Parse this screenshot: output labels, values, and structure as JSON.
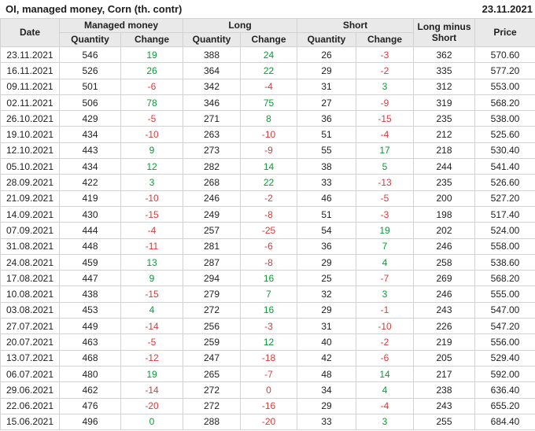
{
  "chart_data": {
    "type": "table",
    "title": "OI, managed money, Corn (th. contr)",
    "report_date": "23.11.2021",
    "headers": {
      "date": "Date",
      "managed_money": "Managed money",
      "long": "Long",
      "short": "Short",
      "quantity": "Quantity",
      "change": "Change",
      "long_minus_short": "Long minus Short",
      "price": "Price"
    },
    "colors": {
      "positive": "#0a9b36",
      "negative": "#d93a3a",
      "header_bg": "#e9e9e9",
      "border": "#d2d2d2",
      "text": "#222222"
    },
    "rows": [
      {
        "date": "23.11.2021",
        "mm_q": "546",
        "mm_ch": {
          "v": "19",
          "s": "pos"
        },
        "l_q": "388",
        "l_ch": {
          "v": "24",
          "s": "pos"
        },
        "s_q": "26",
        "s_ch": {
          "v": "-3",
          "s": "neg"
        },
        "lms": "362",
        "price": "570.60"
      },
      {
        "date": "16.11.2021",
        "mm_q": "526",
        "mm_ch": {
          "v": "26",
          "s": "pos"
        },
        "l_q": "364",
        "l_ch": {
          "v": "22",
          "s": "pos"
        },
        "s_q": "29",
        "s_ch": {
          "v": "-2",
          "s": "neg"
        },
        "lms": "335",
        "price": "577.20"
      },
      {
        "date": "09.11.2021",
        "mm_q": "501",
        "mm_ch": {
          "v": "-6",
          "s": "neg"
        },
        "l_q": "342",
        "l_ch": {
          "v": "-4",
          "s": "neg"
        },
        "s_q": "31",
        "s_ch": {
          "v": "3",
          "s": "pos"
        },
        "lms": "312",
        "price": "553.00"
      },
      {
        "date": "02.11.2021",
        "mm_q": "506",
        "mm_ch": {
          "v": "78",
          "s": "pos"
        },
        "l_q": "346",
        "l_ch": {
          "v": "75",
          "s": "pos"
        },
        "s_q": "27",
        "s_ch": {
          "v": "-9",
          "s": "neg"
        },
        "lms": "319",
        "price": "568.20"
      },
      {
        "date": "26.10.2021",
        "mm_q": "429",
        "mm_ch": {
          "v": "-5",
          "s": "neg"
        },
        "l_q": "271",
        "l_ch": {
          "v": "8",
          "s": "pos"
        },
        "s_q": "36",
        "s_ch": {
          "v": "-15",
          "s": "neg"
        },
        "lms": "235",
        "price": "538.00"
      },
      {
        "date": "19.10.2021",
        "mm_q": "434",
        "mm_ch": {
          "v": "-10",
          "s": "neg"
        },
        "l_q": "263",
        "l_ch": {
          "v": "-10",
          "s": "neg"
        },
        "s_q": "51",
        "s_ch": {
          "v": "-4",
          "s": "neg"
        },
        "lms": "212",
        "price": "525.60"
      },
      {
        "date": "12.10.2021",
        "mm_q": "443",
        "mm_ch": {
          "v": "9",
          "s": "pos"
        },
        "l_q": "273",
        "l_ch": {
          "v": "-9",
          "s": "neg"
        },
        "s_q": "55",
        "s_ch": {
          "v": "17",
          "s": "pos"
        },
        "lms": "218",
        "price": "530.40"
      },
      {
        "date": "05.10.2021",
        "mm_q": "434",
        "mm_ch": {
          "v": "12",
          "s": "pos"
        },
        "l_q": "282",
        "l_ch": {
          "v": "14",
          "s": "pos"
        },
        "s_q": "38",
        "s_ch": {
          "v": "5",
          "s": "pos"
        },
        "lms": "244",
        "price": "541.40"
      },
      {
        "date": "28.09.2021",
        "mm_q": "422",
        "mm_ch": {
          "v": "3",
          "s": "pos"
        },
        "l_q": "268",
        "l_ch": {
          "v": "22",
          "s": "pos"
        },
        "s_q": "33",
        "s_ch": {
          "v": "-13",
          "s": "neg"
        },
        "lms": "235",
        "price": "526.60"
      },
      {
        "date": "21.09.2021",
        "mm_q": "419",
        "mm_ch": {
          "v": "-10",
          "s": "neg"
        },
        "l_q": "246",
        "l_ch": {
          "v": "-2",
          "s": "neg"
        },
        "s_q": "46",
        "s_ch": {
          "v": "-5",
          "s": "neg"
        },
        "lms": "200",
        "price": "527.20"
      },
      {
        "date": "14.09.2021",
        "mm_q": "430",
        "mm_ch": {
          "v": "-15",
          "s": "neg"
        },
        "l_q": "249",
        "l_ch": {
          "v": "-8",
          "s": "neg"
        },
        "s_q": "51",
        "s_ch": {
          "v": "-3",
          "s": "neg"
        },
        "lms": "198",
        "price": "517.40"
      },
      {
        "date": "07.09.2021",
        "mm_q": "444",
        "mm_ch": {
          "v": "-4",
          "s": "neg"
        },
        "l_q": "257",
        "l_ch": {
          "v": "-25",
          "s": "neg"
        },
        "s_q": "54",
        "s_ch": {
          "v": "19",
          "s": "pos"
        },
        "lms": "202",
        "price": "524.00"
      },
      {
        "date": "31.08.2021",
        "mm_q": "448",
        "mm_ch": {
          "v": "-11",
          "s": "neg"
        },
        "l_q": "281",
        "l_ch": {
          "v": "-6",
          "s": "neg"
        },
        "s_q": "36",
        "s_ch": {
          "v": "7",
          "s": "pos"
        },
        "lms": "246",
        "price": "558.00"
      },
      {
        "date": "24.08.2021",
        "mm_q": "459",
        "mm_ch": {
          "v": "13",
          "s": "pos"
        },
        "l_q": "287",
        "l_ch": {
          "v": "-8",
          "s": "neg"
        },
        "s_q": "29",
        "s_ch": {
          "v": "4",
          "s": "pos"
        },
        "lms": "258",
        "price": "538.60"
      },
      {
        "date": "17.08.2021",
        "mm_q": "447",
        "mm_ch": {
          "v": "9",
          "s": "pos"
        },
        "l_q": "294",
        "l_ch": {
          "v": "16",
          "s": "pos"
        },
        "s_q": "25",
        "s_ch": {
          "v": "-7",
          "s": "neg"
        },
        "lms": "269",
        "price": "568.20"
      },
      {
        "date": "10.08.2021",
        "mm_q": "438",
        "mm_ch": {
          "v": "-15",
          "s": "neg"
        },
        "l_q": "279",
        "l_ch": {
          "v": "7",
          "s": "pos"
        },
        "s_q": "32",
        "s_ch": {
          "v": "3",
          "s": "pos"
        },
        "lms": "246",
        "price": "555.00"
      },
      {
        "date": "03.08.2021",
        "mm_q": "453",
        "mm_ch": {
          "v": "4",
          "s": "pos"
        },
        "l_q": "272",
        "l_ch": {
          "v": "16",
          "s": "pos"
        },
        "s_q": "29",
        "s_ch": {
          "v": "-1",
          "s": "neg"
        },
        "lms": "243",
        "price": "547.00"
      },
      {
        "date": "27.07.2021",
        "mm_q": "449",
        "mm_ch": {
          "v": "-14",
          "s": "neg"
        },
        "l_q": "256",
        "l_ch": {
          "v": "-3",
          "s": "neg"
        },
        "s_q": "31",
        "s_ch": {
          "v": "-10",
          "s": "neg"
        },
        "lms": "226",
        "price": "547.20"
      },
      {
        "date": "20.07.2021",
        "mm_q": "463",
        "mm_ch": {
          "v": "-5",
          "s": "neg"
        },
        "l_q": "259",
        "l_ch": {
          "v": "12",
          "s": "pos"
        },
        "s_q": "40",
        "s_ch": {
          "v": "-2",
          "s": "neg"
        },
        "lms": "219",
        "price": "556.00"
      },
      {
        "date": "13.07.2021",
        "mm_q": "468",
        "mm_ch": {
          "v": "-12",
          "s": "neg"
        },
        "l_q": "247",
        "l_ch": {
          "v": "-18",
          "s": "neg"
        },
        "s_q": "42",
        "s_ch": {
          "v": "-6",
          "s": "neg"
        },
        "lms": "205",
        "price": "529.40"
      },
      {
        "date": "06.07.2021",
        "mm_q": "480",
        "mm_ch": {
          "v": "19",
          "s": "pos"
        },
        "l_q": "265",
        "l_ch": {
          "v": "-7",
          "s": "neg"
        },
        "s_q": "48",
        "s_ch": {
          "v": "14",
          "s": "pos"
        },
        "lms": "217",
        "price": "592.00"
      },
      {
        "date": "29.06.2021",
        "mm_q": "462",
        "mm_ch": {
          "v": "-14",
          "s": "neg"
        },
        "l_q": "272",
        "l_ch": {
          "v": "0",
          "s": "neg"
        },
        "s_q": "34",
        "s_ch": {
          "v": "4",
          "s": "pos"
        },
        "lms": "238",
        "price": "636.40"
      },
      {
        "date": "22.06.2021",
        "mm_q": "476",
        "mm_ch": {
          "v": "-20",
          "s": "neg"
        },
        "l_q": "272",
        "l_ch": {
          "v": "-16",
          "s": "neg"
        },
        "s_q": "29",
        "s_ch": {
          "v": "-4",
          "s": "neg"
        },
        "lms": "243",
        "price": "655.20"
      },
      {
        "date": "15.06.2021",
        "mm_q": "496",
        "mm_ch": {
          "v": "0",
          "s": "pos"
        },
        "l_q": "288",
        "l_ch": {
          "v": "-20",
          "s": "neg"
        },
        "s_q": "33",
        "s_ch": {
          "v": "3",
          "s": "pos"
        },
        "lms": "255",
        "price": "684.40"
      }
    ]
  }
}
